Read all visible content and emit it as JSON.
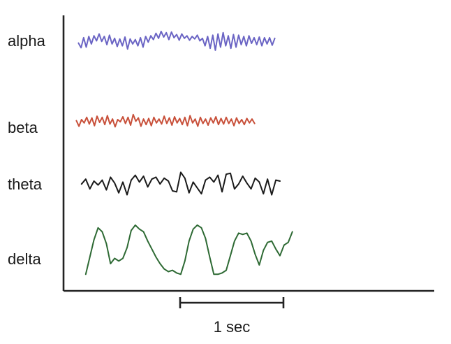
{
  "chart_data": {
    "type": "line",
    "title": "",
    "xlabel": "",
    "ylabel": "",
    "grid": false,
    "legend": "none",
    "scale_bar": {
      "label": "1 sec",
      "duration_s": 1.0
    },
    "x_range_s": [
      0,
      2.7
    ],
    "series": [
      {
        "name": "alpha",
        "color": "#6a64c4",
        "dt_s": 0.025,
        "t_start_s": 0.05,
        "values": [
          0.02,
          -0.35,
          0.45,
          -0.3,
          0.55,
          -0.05,
          0.6,
          0.2,
          0.75,
          0.15,
          0.55,
          -0.1,
          0.65,
          -0.05,
          0.4,
          -0.25,
          0.35,
          -0.2,
          0.5,
          -0.45,
          0.35,
          -0.05,
          0.3,
          -0.2,
          0.45,
          -0.3,
          0.55,
          0.1,
          0.6,
          0.3,
          0.8,
          0.4,
          0.95,
          0.5,
          0.85,
          0.3,
          0.9,
          0.45,
          0.7,
          0.25,
          0.75,
          0.4,
          0.6,
          0.25,
          0.55,
          0.35,
          0.65,
          0.2,
          0.4,
          -0.2,
          0.55,
          -0.4,
          0.65,
          -0.55,
          0.75,
          -0.3,
          0.85,
          -0.2,
          0.6,
          -0.4,
          0.7,
          -0.3,
          0.65,
          -0.1,
          0.55,
          -0.2,
          0.6,
          0.0,
          0.45,
          -0.1,
          0.5,
          -0.2,
          0.45,
          -0.05,
          0.45,
          -0.15,
          0.4
        ],
        "amplitude_scale": 18
      },
      {
        "name": "beta",
        "color": "#c8503a",
        "dt_s": 0.025,
        "t_start_s": 0.03,
        "values": [
          0.15,
          -0.35,
          0.25,
          -0.05,
          0.45,
          -0.15,
          0.4,
          -0.3,
          0.55,
          0.0,
          0.45,
          -0.2,
          0.6,
          -0.15,
          0.3,
          -0.4,
          0.25,
          0.05,
          0.5,
          -0.1,
          0.45,
          -0.25,
          0.7,
          0.1,
          0.4,
          -0.35,
          0.3,
          -0.2,
          0.35,
          -0.3,
          0.45,
          -0.05,
          0.3,
          -0.15,
          0.55,
          -0.1,
          0.4,
          -0.25,
          0.5,
          -0.05,
          0.35,
          -0.2,
          0.45,
          -0.3,
          0.6,
          -0.05,
          0.3,
          -0.35,
          0.45,
          -0.1,
          0.3,
          -0.25,
          0.4,
          -0.05,
          0.5,
          -0.2,
          0.35,
          -0.15,
          0.45,
          -0.1,
          0.3,
          -0.3,
          0.4,
          -0.1,
          0.25,
          -0.2,
          0.35,
          -0.05,
          0.3,
          -0.1
        ],
        "amplitude_scale": 16
      },
      {
        "name": "theta",
        "color": "#1a1a1a",
        "dt_s": 0.04,
        "t_start_s": 0.08,
        "values": [
          0.1,
          0.35,
          -0.15,
          0.25,
          0.05,
          0.3,
          -0.2,
          0.45,
          0.15,
          -0.35,
          0.2,
          -0.45,
          0.3,
          0.55,
          0.2,
          0.5,
          -0.05,
          0.35,
          0.45,
          0.1,
          0.4,
          0.25,
          -0.25,
          -0.3,
          0.7,
          0.4,
          -0.35,
          0.2,
          -0.1,
          -0.4,
          0.3,
          0.45,
          0.2,
          0.55,
          -0.3,
          0.6,
          0.65,
          -0.15,
          0.1,
          0.5,
          0.15,
          -0.15,
          0.4,
          0.2,
          -0.4,
          0.35,
          -0.45,
          0.3,
          0.25
        ],
        "amplitude_scale": 28
      },
      {
        "name": "delta",
        "color": "#2e6a34",
        "dt_s": 0.04,
        "t_start_s": 0.12,
        "values": [
          -0.85,
          -0.2,
          0.45,
          0.9,
          0.75,
          0.3,
          -0.45,
          -0.25,
          -0.35,
          -0.25,
          0.15,
          0.8,
          1.0,
          0.85,
          0.75,
          0.4,
          0.1,
          -0.2,
          -0.45,
          -0.65,
          -0.75,
          -0.7,
          -0.8,
          -0.85,
          -0.35,
          0.4,
          0.85,
          1.0,
          0.9,
          0.5,
          -0.2,
          -0.85,
          -0.85,
          -0.8,
          -0.7,
          -0.15,
          0.4,
          0.7,
          0.65,
          0.7,
          0.4,
          -0.1,
          -0.5,
          0.05,
          0.35,
          0.4,
          0.1,
          -0.15,
          0.25,
          0.35,
          0.75
        ],
        "amplitude_scale": 38
      }
    ]
  }
}
